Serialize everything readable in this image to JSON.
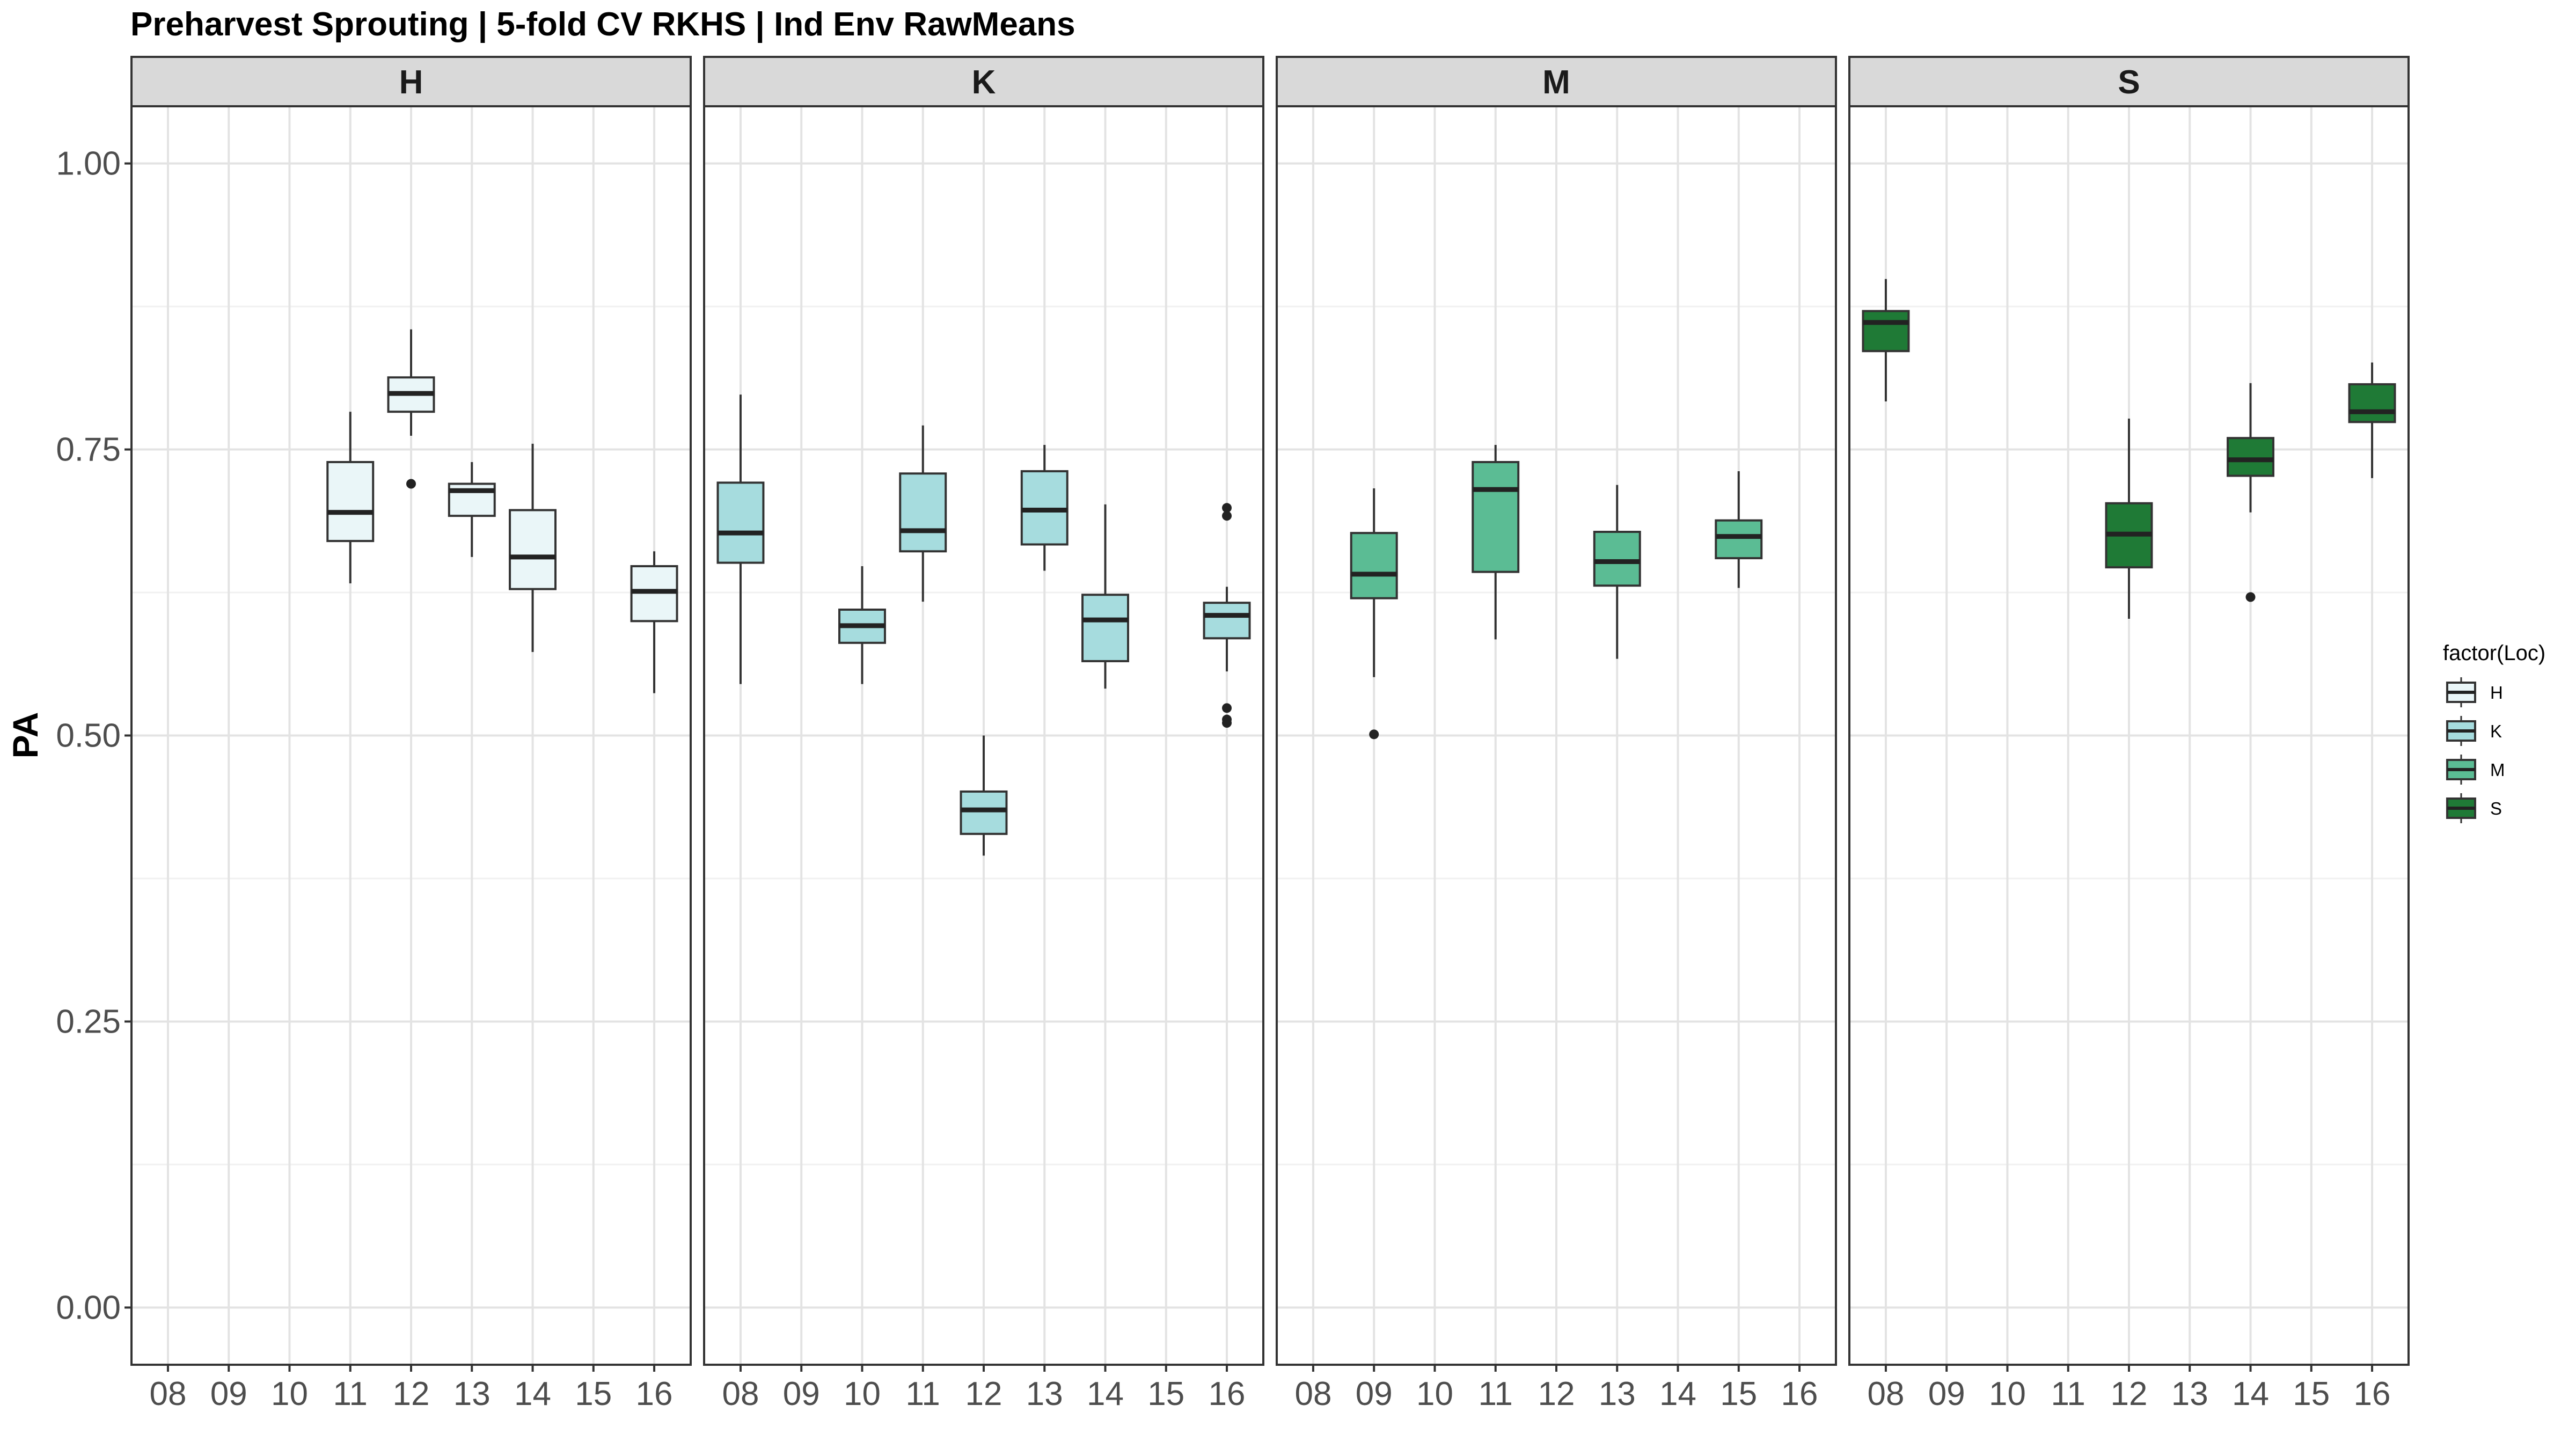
{
  "chart_data": {
    "type": "boxplot",
    "title": "Preharvest Sprouting | 5-fold CV RKHS | Ind Env RawMeans",
    "ylabel": "PA",
    "xlabel": "",
    "ylim": [
      -0.05,
      1.05
    ],
    "yticks": [
      0.0,
      0.25,
      0.5,
      0.75,
      1.0
    ],
    "ytick_labels": [
      "0.00",
      "0.25",
      "0.50",
      "0.75",
      "1.00"
    ],
    "categories": [
      "08",
      "09",
      "10",
      "11",
      "12",
      "13",
      "14",
      "15",
      "16"
    ],
    "grid": true,
    "legend": {
      "title": "factor(Loc)",
      "position": "right",
      "entries": [
        {
          "label": "H",
          "color": "#EAF6F8"
        },
        {
          "label": "K",
          "color": "#A6DCDE"
        },
        {
          "label": "M",
          "color": "#5BBC94"
        },
        {
          "label": "S",
          "color": "#1F7A36"
        }
      ]
    },
    "panels": [
      {
        "name": "H",
        "color": "#EAF6F8",
        "boxes": [
          {
            "year": "11",
            "whisker_low": 0.633,
            "q1": 0.67,
            "median": 0.695,
            "q3": 0.739,
            "whisker_high": 0.783,
            "outliers": []
          },
          {
            "year": "12",
            "whisker_low": 0.762,
            "q1": 0.783,
            "median": 0.799,
            "q3": 0.813,
            "whisker_high": 0.855,
            "outliers": [
              0.72
            ]
          },
          {
            "year": "13",
            "whisker_low": 0.656,
            "q1": 0.692,
            "median": 0.714,
            "q3": 0.72,
            "whisker_high": 0.739,
            "outliers": []
          },
          {
            "year": "14",
            "whisker_low": 0.573,
            "q1": 0.628,
            "median": 0.656,
            "q3": 0.697,
            "whisker_high": 0.755,
            "outliers": []
          },
          {
            "year": "16",
            "whisker_low": 0.537,
            "q1": 0.6,
            "median": 0.626,
            "q3": 0.648,
            "whisker_high": 0.661,
            "outliers": []
          }
        ]
      },
      {
        "name": "K",
        "color": "#A6DCDE",
        "boxes": [
          {
            "year": "08",
            "whisker_low": 0.545,
            "q1": 0.651,
            "median": 0.677,
            "q3": 0.721,
            "whisker_high": 0.798,
            "outliers": []
          },
          {
            "year": "10",
            "whisker_low": 0.545,
            "q1": 0.581,
            "median": 0.596,
            "q3": 0.61,
            "whisker_high": 0.648,
            "outliers": []
          },
          {
            "year": "11",
            "whisker_low": 0.617,
            "q1": 0.661,
            "median": 0.679,
            "q3": 0.729,
            "whisker_high": 0.771,
            "outliers": []
          },
          {
            "year": "12",
            "whisker_low": 0.395,
            "q1": 0.414,
            "median": 0.435,
            "q3": 0.451,
            "whisker_high": 0.5,
            "outliers": []
          },
          {
            "year": "13",
            "whisker_low": 0.644,
            "q1": 0.667,
            "median": 0.697,
            "q3": 0.731,
            "whisker_high": 0.754,
            "outliers": []
          },
          {
            "year": "14",
            "whisker_low": 0.541,
            "q1": 0.565,
            "median": 0.601,
            "q3": 0.623,
            "whisker_high": 0.702,
            "outliers": []
          },
          {
            "year": "16",
            "whisker_low": 0.556,
            "q1": 0.585,
            "median": 0.605,
            "q3": 0.616,
            "whisker_high": 0.63,
            "outliers": [
              0.699,
              0.692,
              0.524,
              0.514,
              0.511
            ]
          }
        ]
      },
      {
        "name": "M",
        "color": "#5BBC94",
        "boxes": [
          {
            "year": "09",
            "whisker_low": 0.551,
            "q1": 0.62,
            "median": 0.641,
            "q3": 0.677,
            "whisker_high": 0.716,
            "outliers": [
              0.501
            ]
          },
          {
            "year": "11",
            "whisker_low": 0.584,
            "q1": 0.643,
            "median": 0.715,
            "q3": 0.739,
            "whisker_high": 0.754,
            "outliers": []
          },
          {
            "year": "13",
            "whisker_low": 0.567,
            "q1": 0.631,
            "median": 0.652,
            "q3": 0.678,
            "whisker_high": 0.719,
            "outliers": []
          },
          {
            "year": "15",
            "whisker_low": 0.629,
            "q1": 0.655,
            "median": 0.674,
            "q3": 0.688,
            "whisker_high": 0.731,
            "outliers": []
          }
        ]
      },
      {
        "name": "S",
        "color": "#1F7A36",
        "boxes": [
          {
            "year": "08",
            "whisker_low": 0.792,
            "q1": 0.836,
            "median": 0.861,
            "q3": 0.871,
            "whisker_high": 0.899,
            "outliers": []
          },
          {
            "year": "12",
            "whisker_low": 0.602,
            "q1": 0.647,
            "median": 0.676,
            "q3": 0.703,
            "whisker_high": 0.777,
            "outliers": []
          },
          {
            "year": "14",
            "whisker_low": 0.695,
            "q1": 0.727,
            "median": 0.741,
            "q3": 0.76,
            "whisker_high": 0.808,
            "outliers": [
              0.621
            ]
          },
          {
            "year": "16",
            "whisker_low": 0.725,
            "q1": 0.774,
            "median": 0.783,
            "q3": 0.807,
            "whisker_high": 0.826,
            "outliers": []
          }
        ]
      }
    ]
  }
}
